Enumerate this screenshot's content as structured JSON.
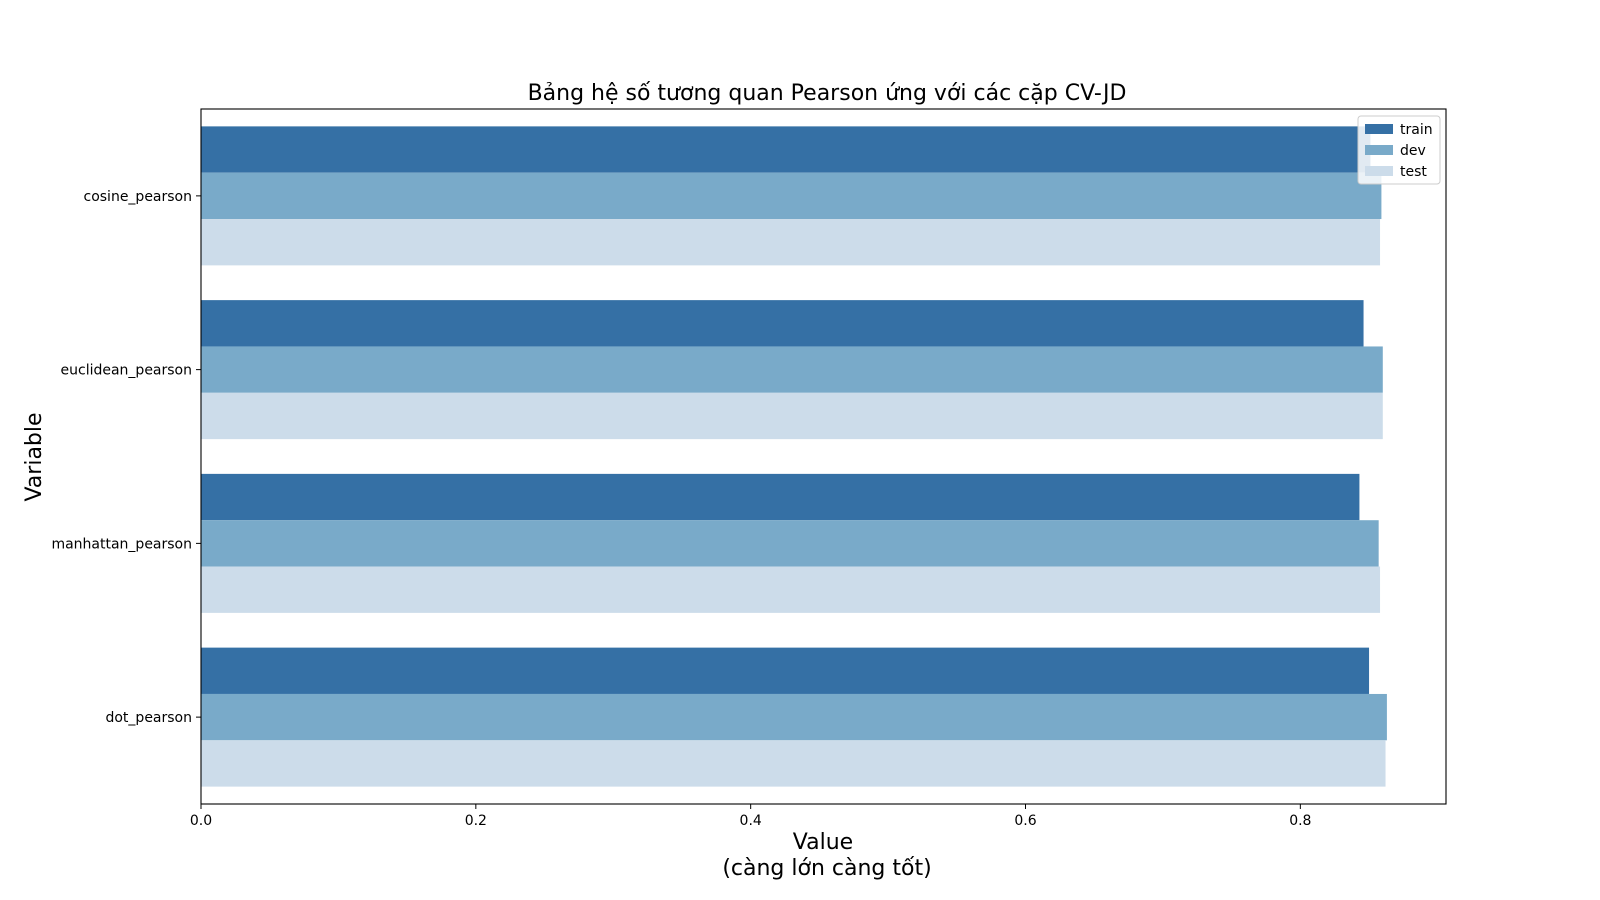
{
  "chart_data": {
    "type": "bar",
    "orientation": "horizontal",
    "title": "Bảng hệ số tương quan Pearson ứng với các cặp CV-JD",
    "xlabel": "Value",
    "xlabel_sub": "(càng lớn càng tốt)",
    "ylabel": "Variable",
    "categories": [
      "cosine_pearson",
      "euclidean_pearson",
      "manhattan_pearson",
      "dot_pearson"
    ],
    "series": [
      {
        "name": "train",
        "color": "#3570a5",
        "values": [
          0.851,
          0.846,
          0.843,
          0.85
        ]
      },
      {
        "name": "dev",
        "color": "#79aac9",
        "values": [
          0.859,
          0.86,
          0.857,
          0.863
        ]
      },
      {
        "name": "test",
        "color": "#ccdcea",
        "values": [
          0.858,
          0.86,
          0.858,
          0.862
        ]
      }
    ],
    "xlim": [
      0,
      0.906
    ],
    "xticks": [
      0.0,
      0.2,
      0.4,
      0.6,
      0.8
    ],
    "xtick_labels": [
      "0.0",
      "0.2",
      "0.4",
      "0.6",
      "0.8"
    ],
    "grid": false,
    "legend_position": "top-right"
  }
}
